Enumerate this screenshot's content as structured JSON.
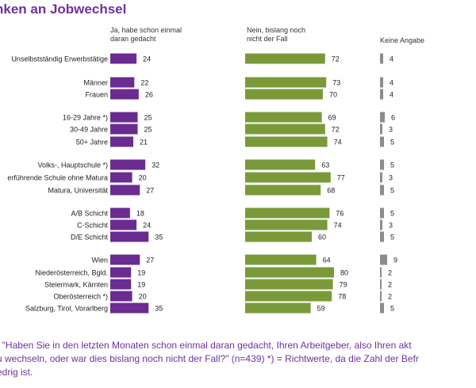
{
  "title": "nken an Jobwechsel",
  "chart_data": {
    "type": "bar",
    "orientation": "horizontal",
    "series": [
      {
        "name": "Ja, habe schon einmal\ndaran gedacht",
        "color": "#6a2c91",
        "values": [
          24,
          22,
          26,
          25,
          25,
          21,
          32,
          20,
          27,
          18,
          24,
          35,
          27,
          19,
          19,
          20,
          35
        ]
      },
      {
        "name": "Nein, bislang noch\nnicht der Fall",
        "color": "#7a9a3a",
        "values": [
          72,
          73,
          70,
          69,
          72,
          74,
          63,
          77,
          68,
          76,
          74,
          60,
          64,
          80,
          79,
          78,
          59
        ]
      },
      {
        "name": "Keine Angabe",
        "color": "#8c8c8c",
        "values": [
          4,
          4,
          4,
          6,
          3,
          5,
          5,
          3,
          5,
          5,
          3,
          5,
          9,
          2,
          2,
          2,
          5
        ]
      }
    ],
    "categories": [
      "Unselbstständig Erwerbstätige",
      "Männer",
      "Frauen",
      "16-29 Jahre *)",
      "30-49 Jahre",
      "50+ Jahre",
      "Volks-, Hauptschule *)",
      "erführende Schule ohne Matura",
      "Matura, Universität",
      "A/B Schicht",
      "C-Schicht",
      "D/E Schicht",
      "Wien",
      "Niederösterreich, Bgld.",
      "Steiermark, Kärnten",
      "Oberösterreich *)",
      "Salzburg, Tirol, Vorarlberg"
    ],
    "groups": [
      [
        0
      ],
      [
        1,
        2
      ],
      [
        3,
        4,
        5
      ],
      [
        6,
        7,
        8
      ],
      [
        9,
        10,
        11
      ],
      [
        12,
        13,
        14,
        15,
        16
      ]
    ]
  },
  "footnote": ": \"Haben Sie in den letzten Monaten schon einmal daran gedacht, Ihren Arbeitgeber, also Ihren akt\nu wechseln, oder war dies bislang noch nicht der Fall?\" (n=439) *) = Richtwerte, da die Zahl der Befr\nedrig ist."
}
